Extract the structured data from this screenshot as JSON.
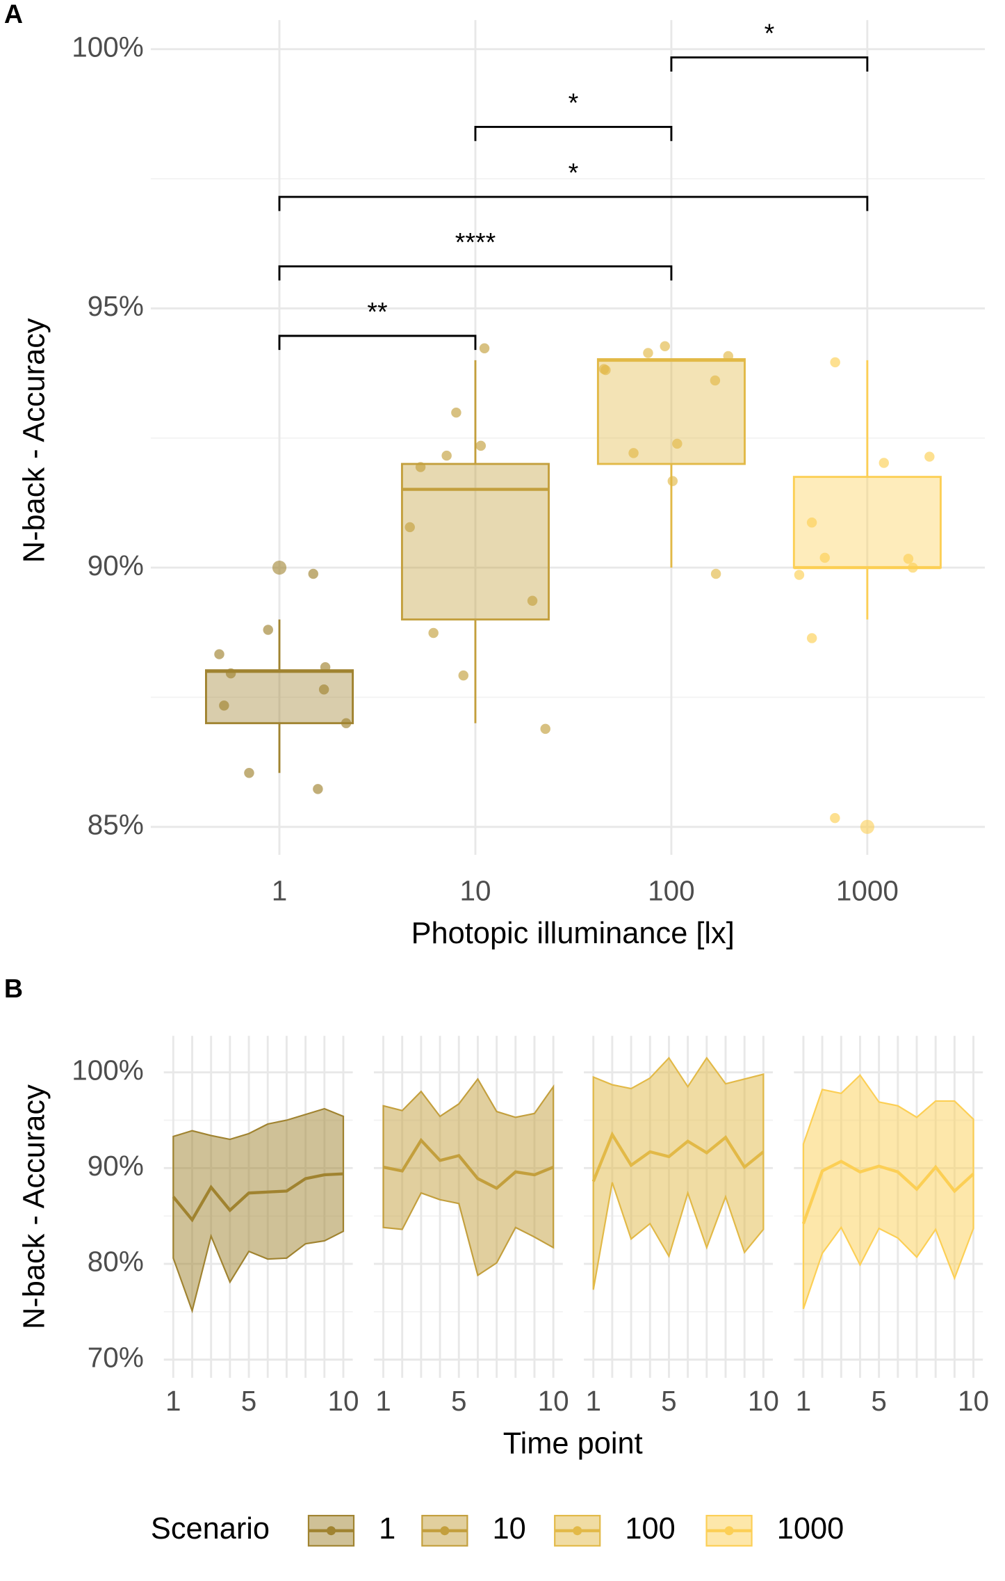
{
  "chart_data": [
    {
      "type": "box",
      "panel": "A",
      "xlabel": "Photopic illuminance [lx]",
      "ylabel": "N-back - Accuracy",
      "categories": [
        "1",
        "10",
        "100",
        "1000"
      ],
      "ylim": [
        84.46,
        100.56
      ],
      "yticks": [
        {
          "value": 85,
          "label": "85%"
        },
        {
          "value": 90,
          "label": "90%"
        },
        {
          "value": 95,
          "label": "95%"
        },
        {
          "value": 100,
          "label": "100%"
        }
      ],
      "minor_yticks": [
        87.5,
        92.5,
        97.5
      ],
      "grid": true,
      "boxes": [
        {
          "low": 86.04,
          "q1": 87.0,
          "median": 88.0,
          "q3": 88.02,
          "high": 89.0,
          "color": "#A08330",
          "outliers": [
            90.0
          ],
          "points": [
            89.88,
            88.33,
            88.8,
            88.08,
            87.96,
            87.65,
            87.34,
            87.0,
            86.04,
            85.73
          ]
        },
        {
          "low": 87.0,
          "q1": 89.0,
          "median": 91.51,
          "q3": 92.0,
          "high": 94.0,
          "color": "#C39F3D",
          "outliers": [],
          "points": [
            94.23,
            92.99,
            92.16,
            92.35,
            91.94,
            90.78,
            89.36,
            88.74,
            87.92,
            86.89
          ]
        },
        {
          "low": 90.0,
          "q1": 92.0,
          "median": 94.0,
          "q3": 94.02,
          "high": 94.02,
          "color": "#E2B947",
          "outliers": [],
          "points": [
            94.27,
            94.14,
            94.08,
            93.81,
            93.61,
            93.83,
            92.39,
            92.21,
            91.67,
            89.88
          ]
        },
        {
          "low": 89.0,
          "q1": 90.0,
          "median": 90.0,
          "q3": 91.75,
          "high": 94.0,
          "color": "#FCCF55",
          "outliers": [
            85.0
          ],
          "points": [
            93.96,
            92.14,
            92.02,
            90.87,
            90.19,
            90.0,
            90.17,
            89.86,
            88.64,
            85.17
          ]
        }
      ],
      "brackets": [
        {
          "from": "1",
          "to": "10",
          "label": "**",
          "y": 94.47
        },
        {
          "from": "1",
          "to": "100",
          "label": "****",
          "y": 95.81
        },
        {
          "from": "1",
          "to": "1000",
          "label": "*",
          "y": 97.15
        },
        {
          "from": "10",
          "to": "100",
          "label": "*",
          "y": 98.5
        },
        {
          "from": "100",
          "to": "1000",
          "label": "*",
          "y": 99.84
        }
      ]
    },
    {
      "type": "ribbon",
      "panel": "B",
      "xlabel": "Time point",
      "ylabel": "N-back - Accuracy",
      "legend_title": "Scenario",
      "x": [
        1,
        2,
        3,
        4,
        5,
        6,
        7,
        8,
        9,
        10
      ],
      "xlim": [
        0.5,
        10.5
      ],
      "xticks": [
        1,
        5,
        10
      ],
      "ylim": [
        68.1,
        103.8
      ],
      "yticks": [
        {
          "value": 70,
          "label": "70%"
        },
        {
          "value": 80,
          "label": "80%"
        },
        {
          "value": 90,
          "label": "90%"
        },
        {
          "value": 100,
          "label": "100%"
        }
      ],
      "minor_yticks": [
        75,
        85,
        95
      ],
      "grid": true,
      "series": [
        {
          "name": "1",
          "color": "#A08330",
          "values": [
            87.0,
            84.6,
            88.0,
            85.6,
            87.4,
            87.5,
            87.6,
            88.9,
            89.3,
            89.4
          ],
          "upper": [
            93.3,
            93.9,
            93.4,
            93.0,
            93.6,
            94.6,
            95.0,
            95.6,
            96.2,
            95.4
          ],
          "lower": [
            80.6,
            75.1,
            82.9,
            78.1,
            81.3,
            80.5,
            80.6,
            82.1,
            82.4,
            83.4
          ]
        },
        {
          "name": "10",
          "color": "#C39F3D",
          "values": [
            90.1,
            89.7,
            92.9,
            90.8,
            91.3,
            88.9,
            87.9,
            89.6,
            89.3,
            90.1
          ],
          "upper": [
            96.5,
            96.0,
            98.0,
            95.4,
            96.7,
            99.3,
            95.9,
            95.3,
            95.7,
            98.5
          ],
          "lower": [
            83.8,
            83.6,
            87.4,
            86.7,
            86.3,
            78.8,
            80.1,
            83.8,
            82.8,
            81.7
          ]
        },
        {
          "name": "100",
          "color": "#E2B947",
          "values": [
            88.6,
            93.5,
            90.3,
            91.7,
            91.2,
            92.8,
            91.6,
            93.2,
            90.1,
            91.7
          ],
          "upper": [
            99.5,
            98.7,
            98.3,
            99.4,
            101.5,
            98.5,
            101.5,
            98.8,
            99.3,
            99.8
          ],
          "lower": [
            77.3,
            88.5,
            82.6,
            84.2,
            80.8,
            87.4,
            81.7,
            87.0,
            81.2,
            83.6
          ]
        },
        {
          "name": "1000",
          "color": "#FCCF55",
          "values": [
            84.2,
            89.7,
            90.7,
            89.6,
            90.2,
            89.6,
            87.8,
            90.1,
            87.6,
            89.4
          ],
          "upper": [
            92.5,
            98.2,
            97.8,
            99.7,
            96.9,
            96.5,
            95.3,
            97.0,
            97.0,
            95.1
          ],
          "lower": [
            75.3,
            81.1,
            83.8,
            79.9,
            83.7,
            82.7,
            80.7,
            83.6,
            78.5,
            83.7
          ]
        }
      ]
    }
  ]
}
